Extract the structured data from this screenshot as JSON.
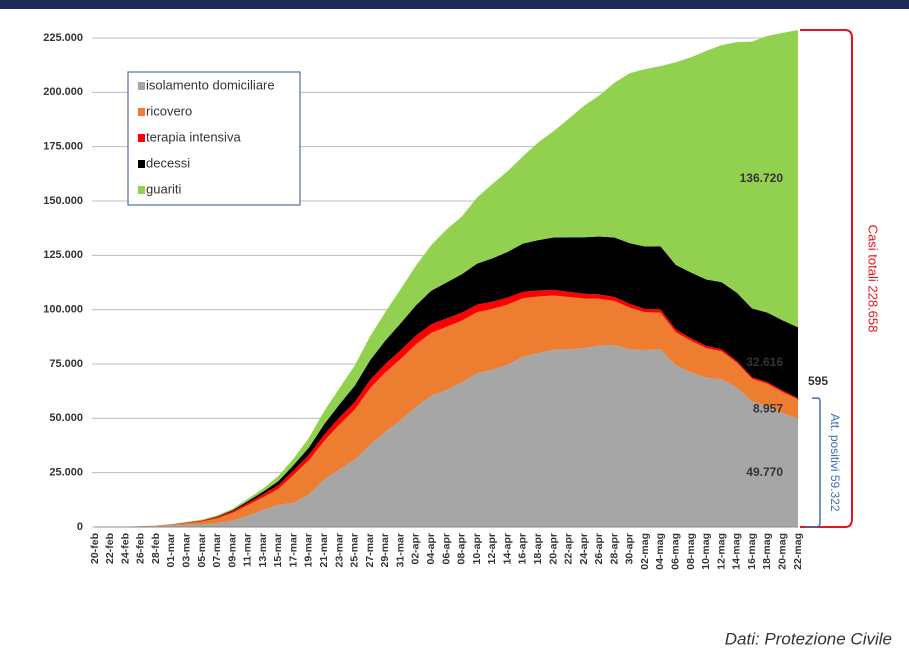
{
  "chart_data": {
    "type": "stacked-area",
    "categories": [
      "20-feb",
      "22-feb",
      "24-feb",
      "26-feb",
      "28-feb",
      "01-mar",
      "03-mar",
      "05-mar",
      "07-mar",
      "09-mar",
      "11-mar",
      "13-mar",
      "15-mar",
      "17-mar",
      "19-mar",
      "21-mar",
      "23-mar",
      "25-mar",
      "27-mar",
      "29-mar",
      "31-mar",
      "02-apr",
      "04-apr",
      "06-apr",
      "08-apr",
      "10-apr",
      "12-apr",
      "14-apr",
      "16-apr",
      "18-apr",
      "20-apr",
      "22-apr",
      "24-apr",
      "26-apr",
      "28-apr",
      "30-apr",
      "02-mag",
      "04-mag",
      "06-mag",
      "08-mag",
      "10-mag",
      "12-mag",
      "14-mag",
      "16-mag",
      "18-mag",
      "20-mag",
      "22-mag"
    ],
    "series": [
      {
        "name": "isolamento domiciliare",
        "color": "#a6a6a6",
        "values": [
          0,
          0,
          94,
          162,
          412,
          639,
          1065,
          1155,
          1843,
          2936,
          5036,
          7860,
          10197,
          11108,
          14935,
          21937,
          26522,
          30920,
          37860,
          43752,
          49085,
          55270,
          60313,
          63084,
          66534,
          70691,
          72333,
          74696,
          78364,
          80031,
          81510,
          81708,
          82286,
          83504,
          83619,
          81708,
          81436,
          81808,
          74426,
          71070,
          68679,
          67950,
          64132,
          57752,
          55597,
          52452,
          49770
        ],
        "value_labels": [
          null,
          null,
          null,
          null,
          null,
          null,
          null,
          null,
          null,
          null,
          null,
          null,
          null,
          null,
          null,
          null,
          null,
          null,
          null,
          null,
          null,
          null,
          null,
          null,
          null,
          null,
          null,
          null,
          null,
          null,
          null,
          null,
          null,
          null,
          null,
          null,
          null,
          null,
          null,
          null,
          null,
          null,
          null,
          null,
          null,
          null,
          "49.770"
        ]
      },
      {
        "name": "ricovero",
        "color": "#ed7d31",
        "values": [
          0,
          0,
          54,
          114,
          162,
          401,
          742,
          1346,
          2180,
          3557,
          5038,
          5838,
          7426,
          12894,
          15757,
          17708,
          20692,
          23112,
          26029,
          27386,
          28192,
          28741,
          29010,
          28976,
          28399,
          28144,
          28023,
          27643,
          26893,
          26033,
          25007,
          24134,
          22871,
          21533,
          20353,
          19210,
          17357,
          16823,
          15174,
          14636,
          13618,
          12865,
          11453,
          10400,
          10311,
          9624,
          8957
        ],
        "value_labels": [
          null,
          null,
          null,
          null,
          null,
          null,
          null,
          null,
          null,
          null,
          null,
          null,
          null,
          null,
          null,
          null,
          null,
          null,
          null,
          null,
          null,
          null,
          null,
          null,
          null,
          null,
          null,
          null,
          null,
          null,
          null,
          null,
          null,
          null,
          null,
          null,
          null,
          null,
          null,
          null,
          null,
          null,
          null,
          null,
          null,
          null,
          "8.957"
        ]
      },
      {
        "name": "terapia intensiva",
        "color": "#ff0000",
        "values": [
          0,
          0,
          26,
          35,
          64,
          140,
          229,
          351,
          567,
          733,
          1028,
          1328,
          1672,
          2060,
          2498,
          2857,
          3204,
          3489,
          3732,
          3906,
          4023,
          4053,
          3994,
          3898,
          3693,
          3497,
          3343,
          3186,
          2936,
          2733,
          2573,
          2384,
          2173,
          2009,
          1863,
          1694,
          1539,
          1479,
          1333,
          1168,
          1027,
          952,
          855,
          775,
          749,
          676,
          595
        ],
        "value_labels": [
          null,
          null,
          null,
          null,
          null,
          null,
          null,
          null,
          null,
          null,
          null,
          null,
          null,
          null,
          null,
          null,
          null,
          null,
          null,
          null,
          null,
          null,
          null,
          null,
          null,
          null,
          null,
          null,
          null,
          null,
          null,
          null,
          null,
          null,
          null,
          null,
          null,
          null,
          null,
          null,
          null,
          null,
          null,
          null,
          null,
          null,
          "595"
        ]
      },
      {
        "name": "decessi",
        "color": "#000000",
        "values": [
          0,
          0,
          7,
          12,
          21,
          34,
          79,
          148,
          233,
          463,
          827,
          1266,
          1809,
          2503,
          3405,
          4825,
          6077,
          7503,
          9134,
          10779,
          12428,
          13915,
          15362,
          16523,
          17669,
          18849,
          19899,
          21067,
          22170,
          23227,
          24114,
          25085,
          25969,
          26644,
          27359,
          27967,
          28710,
          29079,
          29684,
          30201,
          30560,
          30911,
          31368,
          31610,
          32007,
          32330,
          32616
        ],
        "value_labels": [
          null,
          null,
          null,
          null,
          null,
          null,
          null,
          null,
          null,
          null,
          null,
          null,
          null,
          null,
          null,
          null,
          null,
          null,
          null,
          null,
          null,
          null,
          null,
          null,
          null,
          null,
          null,
          null,
          null,
          null,
          null,
          null,
          null,
          null,
          null,
          null,
          null,
          null,
          null,
          null,
          null,
          null,
          null,
          null,
          null,
          null,
          "32.616"
        ]
      },
      {
        "name": "guariti",
        "color": "#92d050",
        "values": [
          0,
          0,
          1,
          3,
          46,
          83,
          160,
          414,
          589,
          724,
          1045,
          1439,
          2335,
          2941,
          4440,
          6072,
          7432,
          9362,
          10950,
          13030,
          15729,
          18278,
          20996,
          24392,
          26491,
          30455,
          34211,
          37130,
          40164,
          44927,
          48877,
          54543,
          60498,
          64928,
          71252,
          78249,
          81654,
          82879,
          93245,
          99023,
          105186,
          109039,
          115288,
          122810,
          127326,
          132282,
          136720
        ],
        "value_labels": [
          null,
          null,
          null,
          null,
          null,
          null,
          null,
          null,
          null,
          null,
          null,
          null,
          null,
          null,
          null,
          null,
          null,
          null,
          null,
          null,
          null,
          null,
          null,
          null,
          null,
          null,
          null,
          null,
          null,
          null,
          null,
          null,
          null,
          null,
          null,
          null,
          null,
          null,
          null,
          null,
          null,
          null,
          null,
          null,
          null,
          null,
          "136.720"
        ]
      }
    ],
    "ylim": [
      0,
      225000
    ],
    "yticks": [
      0,
      {
        "value": 25000,
        "label": "25.000"
      },
      {
        "value": 50000,
        "label": "50.000"
      },
      {
        "value": 75000,
        "label": "75.000"
      },
      {
        "value": 100000,
        "label": "100.000"
      },
      {
        "value": 125000,
        "label": "125.000"
      },
      {
        "value": 150000,
        "label": "150.000"
      },
      {
        "value": 175000,
        "label": "175.000"
      },
      {
        "value": 200000,
        "label": "200.000"
      },
      {
        "value": 225000,
        "label": "225.000"
      }
    ],
    "grid": true,
    "legend": "upper-left",
    "annotations": [
      {
        "text": "Casi totali 228.658",
        "color": "#e8141b"
      },
      {
        "text": "Att. positivi 59.322",
        "color": "#3f6db5"
      }
    ],
    "source": "Dati: Protezione Civile"
  }
}
